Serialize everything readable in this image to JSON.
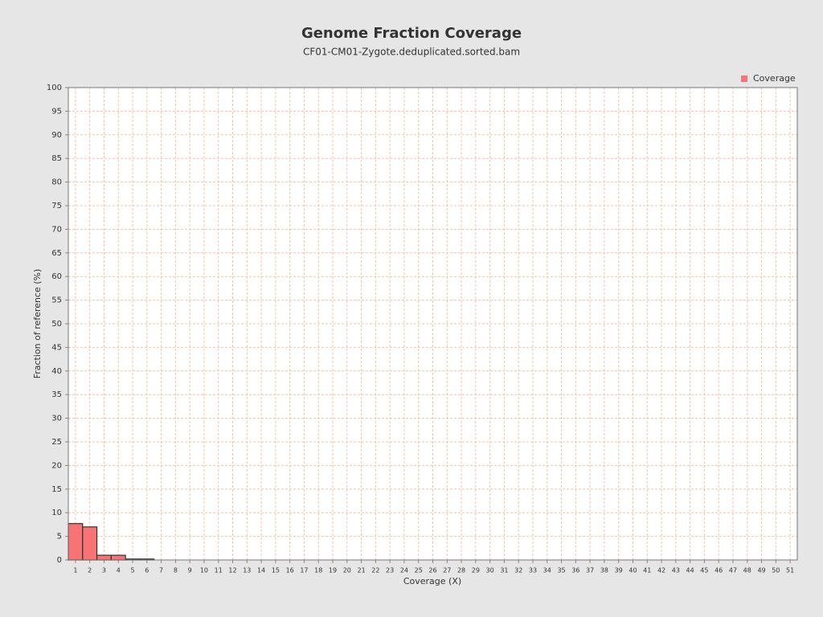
{
  "chart_data": {
    "type": "bar",
    "title": "Genome Fraction Coverage",
    "subtitle": "CF01-CM01-Zygote.deduplicated.sorted.bam",
    "x_label": "Coverage (X)",
    "y_label": "Fraction of reference (%)",
    "categories": [
      "1",
      "2",
      "3",
      "4",
      "5",
      "6",
      "7",
      "8",
      "9",
      "10",
      "11",
      "12",
      "13",
      "14",
      "15",
      "16",
      "17",
      "18",
      "19",
      "20",
      "21",
      "22",
      "23",
      "24",
      "25",
      "26",
      "27",
      "28",
      "29",
      "30",
      "31",
      "32",
      "33",
      "34",
      "35",
      "36",
      "37",
      "38",
      "39",
      "40",
      "41",
      "42",
      "43",
      "44",
      "45",
      "46",
      "47",
      "48",
      "49",
      "50",
      "51"
    ],
    "series": [
      {
        "name": "Coverage",
        "color": "#f87373",
        "values": [
          7.7,
          7.0,
          1.0,
          1.0,
          0.2,
          0.2,
          0,
          0,
          0,
          0,
          0,
          0,
          0,
          0,
          0,
          0,
          0,
          0,
          0,
          0,
          0,
          0,
          0,
          0,
          0,
          0,
          0,
          0,
          0,
          0,
          0,
          0,
          0,
          0,
          0,
          0,
          0,
          0,
          0,
          0,
          0,
          0,
          0,
          0,
          0,
          0,
          0,
          0,
          0,
          0,
          0
        ]
      }
    ],
    "ylim": [
      0,
      100
    ],
    "yticks": [
      0,
      5,
      10,
      15,
      20,
      25,
      30,
      35,
      40,
      45,
      50,
      55,
      60,
      65,
      70,
      75,
      80,
      85,
      90,
      95,
      100
    ],
    "grid": true,
    "legend": "top-right"
  }
}
